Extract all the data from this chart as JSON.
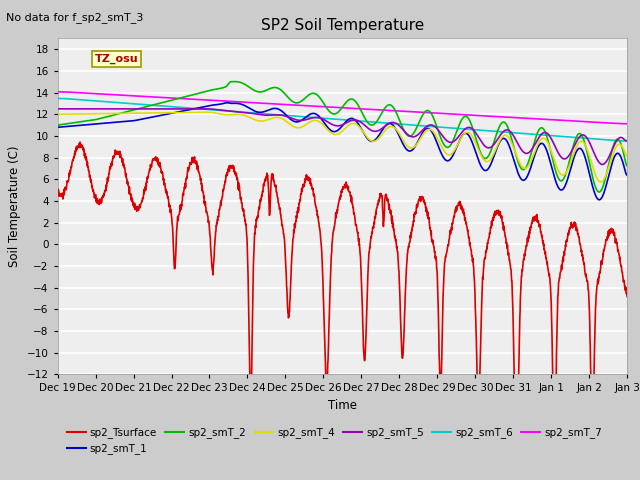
{
  "title": "SP2 Soil Temperature",
  "subtitle": "No data for f_sp2_smT_3",
  "ylabel": "Soil Temperature (C)",
  "xlabel": "Time",
  "ylim": [
    -12,
    19
  ],
  "yticks": [
    -12,
    -10,
    -8,
    -6,
    -4,
    -2,
    0,
    2,
    4,
    6,
    8,
    10,
    12,
    14,
    16,
    18
  ],
  "plot_bg_color": "#eeeeee",
  "fig_bg_color": "#cccccc",
  "tz_label": "TZ_osu",
  "legend_entries": [
    {
      "label": "sp2_Tsurface",
      "color": "#dd0000",
      "lw": 1.2
    },
    {
      "label": "sp2_smT_1",
      "color": "#0000cc",
      "lw": 1.2
    },
    {
      "label": "sp2_smT_2",
      "color": "#00bb00",
      "lw": 1.2
    },
    {
      "label": "sp2_smT_4",
      "color": "#dddd00",
      "lw": 1.2
    },
    {
      "label": "sp2_smT_5",
      "color": "#9900bb",
      "lw": 1.2
    },
    {
      "label": "sp2_smT_6",
      "color": "#00cccc",
      "lw": 1.2
    },
    {
      "label": "sp2_smT_7",
      "color": "#ff00ff",
      "lw": 1.2
    }
  ],
  "n_days": 15,
  "x_tick_labels": [
    "Dec 19",
    "Dec 20",
    "Dec 21",
    "Dec 22",
    "Dec 23",
    "Dec 24",
    "Dec 25",
    "Dec 26",
    "Dec 27",
    "Dec 28",
    "Dec 29",
    "Dec 30",
    "Dec 31",
    "Jan 1",
    "Jan 2",
    "Jan 3"
  ]
}
